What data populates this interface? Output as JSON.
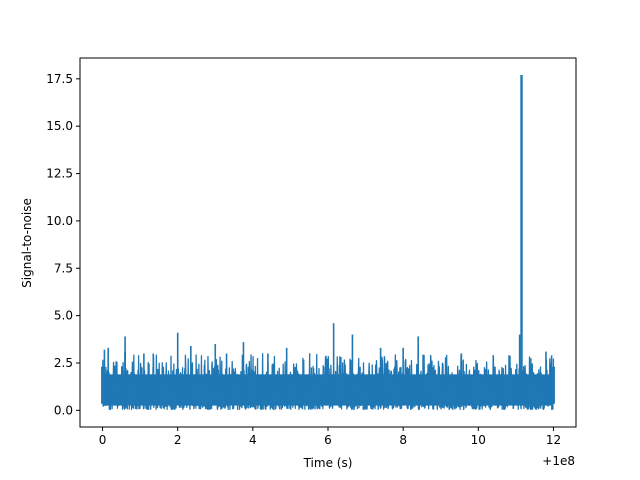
{
  "chart_data": {
    "type": "line",
    "xlabel": "Time (s)",
    "ylabel": "Signal-to-noise",
    "x_offset_label": "+1e8",
    "xlim": [
      -0.6,
      12.6
    ],
    "ylim": [
      -0.88,
      18.6
    ],
    "x_ticks": [
      0,
      2,
      4,
      6,
      8,
      10,
      12
    ],
    "x_tick_labels": [
      "0",
      "2",
      "4",
      "6",
      "8",
      "10",
      "12"
    ],
    "y_ticks": [
      0.0,
      2.5,
      5.0,
      7.5,
      10.0,
      12.5,
      15.0,
      17.5
    ],
    "y_tick_labels": [
      "0.0",
      "2.5",
      "5.0",
      "7.5",
      "10.0",
      "12.5",
      "15.0",
      "17.5"
    ],
    "grid": false,
    "legend": "none",
    "series": [
      {
        "color": "#1f77b4",
        "x_range": [
          0,
          12
        ],
        "noise_band": [
          0.05,
          3.1
        ],
        "peaks": [
          {
            "x": 0.05,
            "y": 3.2
          },
          {
            "x": 0.15,
            "y": 3.3
          },
          {
            "x": 0.6,
            "y": 3.1
          },
          {
            "x": 0.6,
            "y": 3.1
          },
          {
            "x": 0.6,
            "y": 3.9
          },
          {
            "x": 1.1,
            "y": 3.0
          },
          {
            "x": 1.35,
            "y": 3.0
          },
          {
            "x": 2.0,
            "y": 4.1
          },
          {
            "x": 2.35,
            "y": 3.4
          },
          {
            "x": 3.0,
            "y": 3.5
          },
          {
            "x": 3.3,
            "y": 3.0
          },
          {
            "x": 3.75,
            "y": 3.6
          },
          {
            "x": 4.4,
            "y": 3.0
          },
          {
            "x": 4.9,
            "y": 3.3
          },
          {
            "x": 6.15,
            "y": 4.6
          },
          {
            "x": 6.65,
            "y": 4.0
          },
          {
            "x": 7.4,
            "y": 3.3
          },
          {
            "x": 8.0,
            "y": 3.3
          },
          {
            "x": 8.4,
            "y": 3.9
          },
          {
            "x": 9.55,
            "y": 3.0
          },
          {
            "x": 11.1,
            "y": 4.0
          },
          {
            "x": 11.15,
            "y": 17.7
          },
          {
            "x": 11.8,
            "y": 3.1
          },
          {
            "x": 11.95,
            "y": 2.9
          }
        ]
      }
    ]
  }
}
